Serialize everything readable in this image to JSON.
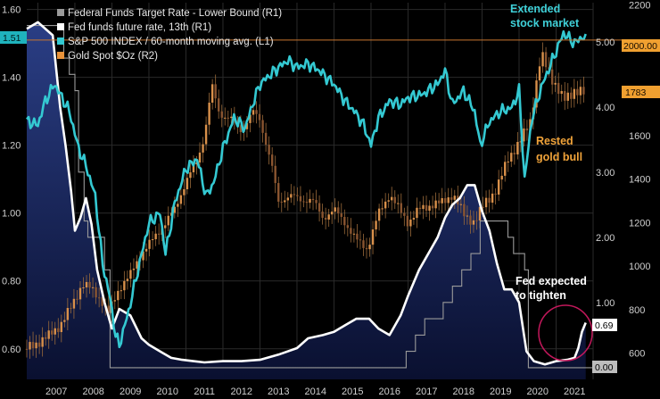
{
  "chart_data": {
    "type": "line",
    "title": "",
    "x_labels": [
      "2007",
      "2008",
      "2009",
      "2010",
      "2011",
      "2012",
      "2013",
      "2014",
      "2015",
      "2016",
      "2017",
      "2018",
      "2019",
      "2020",
      "2021"
    ],
    "x_range": [
      2006.7,
      2022.0
    ],
    "left_axis": {
      "name": "L1",
      "range": [
        0.51,
        1.62
      ],
      "ticks": [
        "0.60",
        "0.80",
        "1.00",
        "1.20",
        "1.40",
        "1.60"
      ],
      "tick_values": [
        0.6,
        0.8,
        1.0,
        1.2,
        1.4,
        1.6
      ],
      "current_tag": "1.51",
      "current_value": 1.51
    },
    "mid_axis": {
      "name": "R1",
      "range": [
        -0.18,
        5.6
      ],
      "ticks": [
        "0.00",
        "1.00",
        "2.00",
        "3.00",
        "4.00",
        "5.00"
      ],
      "tick_values": [
        0,
        1,
        2,
        3,
        4,
        5
      ],
      "current_tags": [
        "0.69",
        "0.00"
      ],
      "current_values": [
        0.69,
        0.0
      ]
    },
    "right_axis": {
      "name": "R2",
      "range": [
        480,
        2210
      ],
      "ticks": [
        "600",
        "800",
        "1000",
        "1200",
        "1400",
        "1600",
        "1800",
        "2000",
        "2200"
      ],
      "tick_values": [
        600,
        800,
        1000,
        1200,
        1400,
        1600,
        1800,
        2000,
        2200
      ],
      "current_tags": [
        "2000.00",
        "1783"
      ],
      "current_values": [
        2000,
        1783
      ]
    },
    "legend": [
      {
        "label": "Federal Funds Target Rate - Lower Bound (R1)",
        "color": "#9a9a9a"
      },
      {
        "label": "Fed funds future rate, 13th (R1)",
        "color": "#ffffff"
      },
      {
        "label": "S&P 500 INDEX / 60-month moving avg.  (L1)",
        "color": "#34c9d2"
      },
      {
        "label": "Gold Spot $Oz (R2)",
        "color": "#e8923a"
      }
    ],
    "annotations": [
      {
        "lines": [
          "Extended",
          "stock market"
        ],
        "color": "#3fd0d8"
      },
      {
        "lines": [
          "Rested",
          "gold bull"
        ],
        "color": "#f0a33a"
      },
      {
        "lines": [
          "Fed expected",
          "to tighten"
        ],
        "color": "#ffffff"
      }
    ],
    "series": [
      {
        "name": "Federal Funds Target Rate - Lower Bound",
        "axis": "R1",
        "color": "#9a9a9a",
        "x": [
          2006.7,
          2007.6,
          2007.7,
          2007.85,
          2008.0,
          2008.1,
          2008.25,
          2008.35,
          2008.8,
          2008.95,
          2015.95,
          2016.95,
          2017.2,
          2017.45,
          2017.95,
          2018.2,
          2018.45,
          2018.7,
          2018.95,
          2019.55,
          2019.7,
          2019.85,
          2020.15,
          2020.25,
          2022.0
        ],
        "values": [
          5.25,
          5.25,
          4.75,
          4.5,
          4.25,
          3.0,
          2.25,
          2.0,
          1.5,
          0.0,
          0.0,
          0.25,
          0.5,
          0.75,
          1.0,
          1.25,
          1.5,
          1.75,
          2.25,
          2.25,
          2.0,
          1.75,
          1.5,
          0.0,
          0.0
        ]
      },
      {
        "name": "Fed funds future rate, 13th",
        "axis": "R1",
        "color": "#ffffff",
        "x": [
          2006.7,
          2007.0,
          2007.4,
          2007.6,
          2007.75,
          2007.9,
          2008.0,
          2008.15,
          2008.3,
          2008.45,
          2008.6,
          2008.8,
          2009.0,
          2009.2,
          2009.5,
          2009.8,
          2010.0,
          2010.3,
          2010.6,
          2010.9,
          2011.2,
          2011.5,
          2012.0,
          2012.5,
          2013.0,
          2013.5,
          2014.0,
          2014.3,
          2014.7,
          2015.0,
          2015.3,
          2015.6,
          2015.95,
          2016.2,
          2016.5,
          2016.8,
          2017.0,
          2017.3,
          2017.6,
          2017.8,
          2018.0,
          2018.2,
          2018.4,
          2018.6,
          2018.8,
          2019.0,
          2019.2,
          2019.4,
          2019.6,
          2019.8,
          2020.0,
          2020.2,
          2020.4,
          2020.7,
          2021.0,
          2021.3,
          2021.5,
          2021.6,
          2021.7,
          2021.8
        ],
        "values": [
          5.2,
          5.3,
          5.1,
          4.0,
          3.4,
          2.7,
          2.1,
          2.3,
          2.6,
          2.2,
          1.5,
          1.0,
          0.6,
          0.9,
          0.8,
          0.45,
          0.35,
          0.25,
          0.15,
          0.12,
          0.1,
          0.08,
          0.1,
          0.1,
          0.12,
          0.2,
          0.3,
          0.45,
          0.5,
          0.55,
          0.65,
          0.75,
          0.75,
          0.6,
          0.5,
          0.8,
          1.1,
          1.5,
          1.8,
          2.0,
          2.3,
          2.5,
          2.6,
          2.8,
          2.8,
          2.4,
          2.1,
          1.6,
          1.2,
          1.2,
          1.0,
          0.25,
          0.1,
          0.05,
          0.1,
          0.12,
          0.15,
          0.3,
          0.55,
          0.69
        ]
      },
      {
        "name": "S&P 500 INDEX / 60-month moving avg.",
        "axis": "L1",
        "color": "#34c9d2",
        "x": [
          2006.7,
          2007.0,
          2007.2,
          2007.45,
          2007.65,
          2007.85,
          2008.1,
          2008.3,
          2008.55,
          2008.75,
          2008.95,
          2009.1,
          2009.2,
          2009.45,
          2009.7,
          2010.0,
          2010.3,
          2010.45,
          2010.7,
          2011.0,
          2011.3,
          2011.55,
          2011.75,
          2012.0,
          2012.3,
          2012.6,
          2012.8,
          2013.0,
          2013.4,
          2013.75,
          2014.0,
          2014.3,
          2014.6,
          2015.0,
          2015.3,
          2015.55,
          2015.8,
          2016.0,
          2016.2,
          2016.5,
          2016.8,
          2017.0,
          2017.4,
          2017.8,
          2018.0,
          2018.2,
          2018.5,
          2018.8,
          2018.95,
          2019.2,
          2019.5,
          2019.8,
          2020.0,
          2020.15,
          2020.35,
          2020.6,
          2020.9,
          2021.2,
          2021.5,
          2021.7,
          2021.8
        ],
        "values": [
          1.27,
          1.26,
          1.33,
          1.38,
          1.34,
          1.3,
          1.19,
          1.14,
          1.05,
          0.85,
          0.75,
          0.64,
          0.61,
          0.71,
          0.83,
          0.97,
          1.0,
          0.88,
          1.03,
          1.13,
          1.16,
          1.05,
          1.09,
          1.19,
          1.28,
          1.25,
          1.32,
          1.38,
          1.42,
          1.45,
          1.43,
          1.44,
          1.42,
          1.38,
          1.33,
          1.3,
          1.26,
          1.2,
          1.28,
          1.33,
          1.32,
          1.34,
          1.35,
          1.38,
          1.42,
          1.32,
          1.36,
          1.3,
          1.2,
          1.27,
          1.3,
          1.31,
          1.36,
          1.1,
          1.28,
          1.37,
          1.45,
          1.53,
          1.5,
          1.52,
          1.51
        ]
      },
      {
        "name": "Gold Spot $Oz",
        "axis": "R2",
        "color": "#e8923a",
        "x": [
          2006.7,
          2007.0,
          2007.3,
          2007.6,
          2007.9,
          2008.2,
          2008.4,
          2008.7,
          2008.9,
          2009.2,
          2009.5,
          2009.8,
          2010.1,
          2010.4,
          2010.7,
          2011.0,
          2011.3,
          2011.5,
          2011.7,
          2011.9,
          2012.2,
          2012.5,
          2012.8,
          2013.0,
          2013.3,
          2013.5,
          2013.8,
          2014.1,
          2014.4,
          2014.7,
          2015.0,
          2015.3,
          2015.6,
          2015.9,
          2016.2,
          2016.5,
          2016.8,
          2017.0,
          2017.3,
          2017.6,
          2017.9,
          2018.2,
          2018.5,
          2018.8,
          2019.1,
          2019.4,
          2019.7,
          2020.0,
          2020.3,
          2020.6,
          2020.9,
          2021.2,
          2021.5,
          2021.8
        ],
        "values": [
          620,
          650,
          680,
          730,
          810,
          920,
          900,
          850,
          780,
          900,
          960,
          1060,
          1120,
          1190,
          1260,
          1390,
          1480,
          1600,
          1830,
          1700,
          1680,
          1620,
          1710,
          1670,
          1480,
          1290,
          1330,
          1300,
          1310,
          1220,
          1260,
          1200,
          1120,
          1080,
          1240,
          1330,
          1250,
          1200,
          1260,
          1280,
          1290,
          1330,
          1240,
          1200,
          1300,
          1350,
          1500,
          1560,
          1670,
          1970,
          1860,
          1760,
          1810,
          1790
        ]
      }
    ]
  }
}
